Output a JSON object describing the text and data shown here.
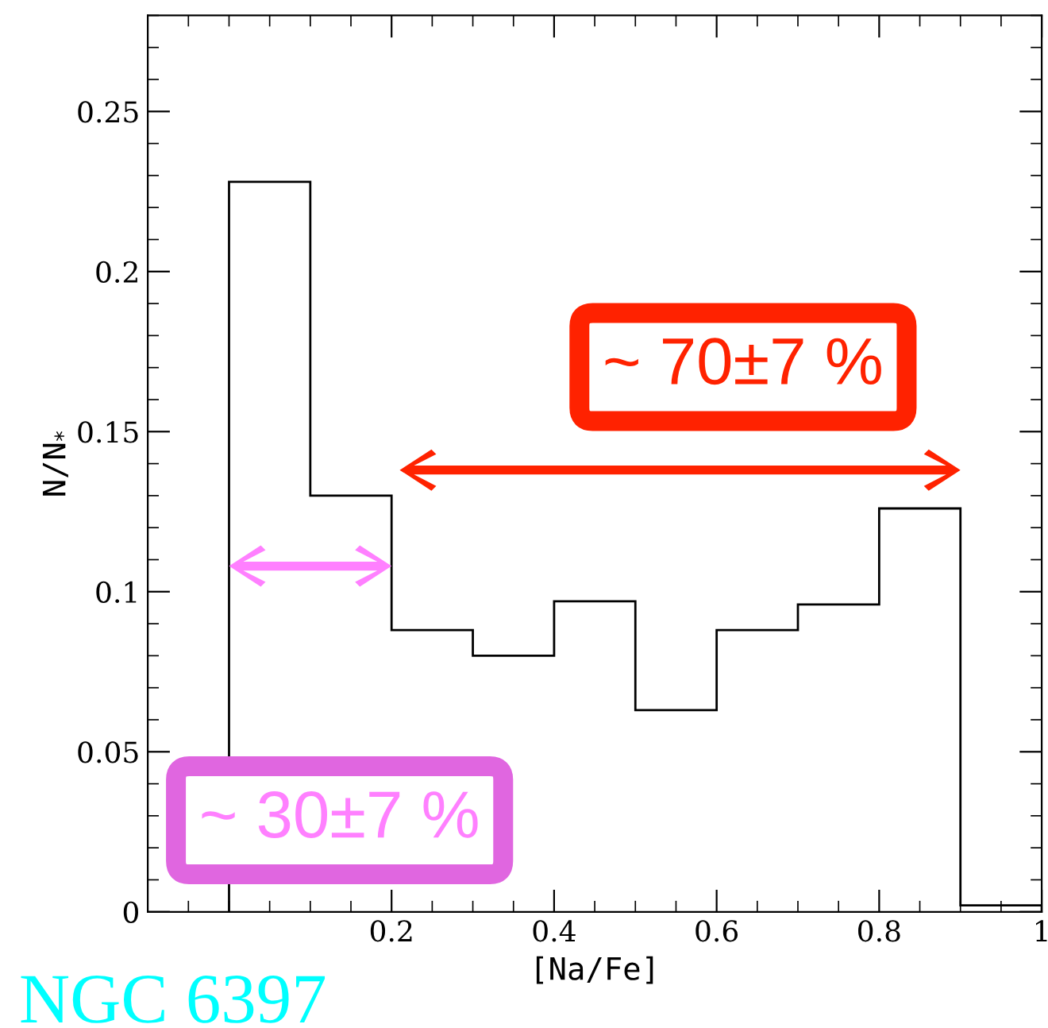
{
  "chart_data": {
    "type": "histogram",
    "xlabel": "[Na/Fe]",
    "ylabel": "N/N$_{*}$",
    "bins": [
      0,
      0.1,
      0.2,
      0.3,
      0.4,
      0.5,
      0.6,
      0.7,
      0.8,
      0.9,
      1.0
    ],
    "values": [
      0.228,
      0.13,
      0.088,
      0.08,
      0.097,
      0.063,
      0.088,
      0.096,
      0.126,
      0.002
    ],
    "color": "#000000",
    "xlim": [
      -0.1,
      1.0
    ],
    "xticks": [
      0.2,
      0.4,
      0.6,
      0.8,
      1
    ],
    "ylim": [
      0,
      0.28
    ],
    "yticks": [
      0,
      0.05,
      0.1,
      0.15,
      0.2,
      0.25
    ],
    "grid": false,
    "legend": false,
    "annotations": [
      "~ 70±7 %",
      "~ 30±7 %",
      "NGC 6397"
    ]
  }
}
